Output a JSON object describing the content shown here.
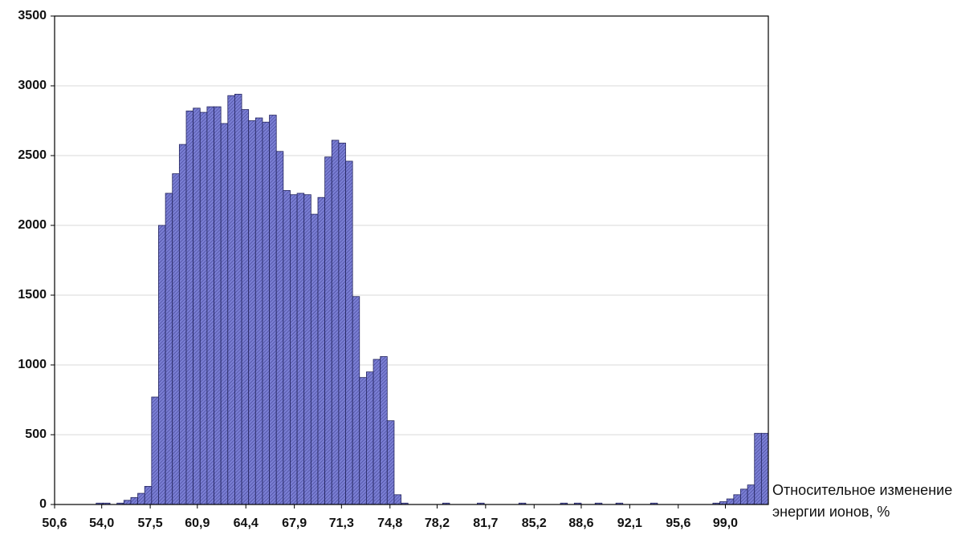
{
  "chart_data": {
    "type": "histogram",
    "x_label": "Относительное изменение энергии ионов, %",
    "bins": [
      50.6,
      51.1,
      51.6,
      52.1,
      52.6,
      53.1,
      53.6,
      54.1,
      54.6,
      55.1,
      55.6,
      56.1,
      56.6,
      57.1,
      57.6,
      58.1,
      58.6,
      59.1,
      59.6,
      60.1,
      60.6,
      61.1,
      61.6,
      62.1,
      62.6,
      63.1,
      63.6,
      64.1,
      64.6,
      65.1,
      65.6,
      66.1,
      66.6,
      67.1,
      67.6,
      68.1,
      68.6,
      69.1,
      69.6,
      70.1,
      70.6,
      71.1,
      71.6,
      72.1,
      72.6,
      73.1,
      73.6,
      74.1,
      74.6,
      75.1,
      75.6,
      76.1,
      76.6,
      77.1,
      77.6,
      78.1,
      78.6,
      79.1,
      79.6,
      80.1,
      80.6,
      81.1,
      81.6,
      82.1,
      82.6,
      83.1,
      83.6,
      84.1,
      84.6,
      85.1,
      85.6,
      86.1,
      86.6,
      87.1,
      87.6,
      88.1,
      88.6,
      89.1,
      89.6,
      90.1,
      90.6,
      91.1,
      91.6,
      92.1,
      92.6,
      93.1,
      93.6,
      94.1,
      94.6,
      95.1,
      95.6,
      96.1,
      96.6,
      97.1,
      97.6,
      98.1,
      98.6,
      99.1,
      99.6,
      100.1,
      100.6,
      101.1,
      101.6,
      102.1
    ],
    "values": [
      0,
      0,
      0,
      0,
      0,
      0,
      10,
      10,
      0,
      10,
      30,
      50,
      80,
      130,
      770,
      2000,
      2230,
      2370,
      2580,
      2820,
      2840,
      2810,
      2850,
      2850,
      2730,
      2930,
      2940,
      2830,
      2750,
      2770,
      2740,
      2790,
      2530,
      2250,
      2220,
      2230,
      2220,
      2080,
      2200,
      2490,
      2610,
      2590,
      2460,
      1490,
      910,
      950,
      1040,
      1060,
      600,
      70,
      10,
      0,
      0,
      0,
      0,
      0,
      10,
      0,
      0,
      0,
      0,
      10,
      0,
      0,
      0,
      0,
      0,
      10,
      0,
      0,
      0,
      0,
      0,
      10,
      0,
      10,
      0,
      0,
      10,
      0,
      0,
      10,
      0,
      0,
      0,
      0,
      10,
      0,
      0,
      0,
      0,
      0,
      0,
      0,
      0,
      10,
      20,
      40,
      70,
      110,
      140,
      510,
      510
    ],
    "color": "#7a7ed4",
    "xlim": [
      50.6,
      102.1
    ],
    "ylim": [
      0,
      3500
    ],
    "xticks": [
      {
        "value": 50.6,
        "label": "50,6"
      },
      {
        "value": 54.0,
        "label": "54,0"
      },
      {
        "value": 57.5,
        "label": "57,5"
      },
      {
        "value": 60.9,
        "label": "60,9"
      },
      {
        "value": 64.4,
        "label": "64,4"
      },
      {
        "value": 67.9,
        "label": "67,9"
      },
      {
        "value": 71.3,
        "label": "71,3"
      },
      {
        "value": 74.8,
        "label": "74,8"
      },
      {
        "value": 78.2,
        "label": "78,2"
      },
      {
        "value": 81.7,
        "label": "81,7"
      },
      {
        "value": 85.2,
        "label": "85,2"
      },
      {
        "value": 88.6,
        "label": "88,6"
      },
      {
        "value": 92.1,
        "label": "92,1"
      },
      {
        "value": 95.6,
        "label": "95,6"
      },
      {
        "value": 99.0,
        "label": "99,0"
      }
    ],
    "yticks": [
      0,
      500,
      1000,
      1500,
      2000,
      2500,
      3000,
      3500
    ],
    "grid": true
  }
}
